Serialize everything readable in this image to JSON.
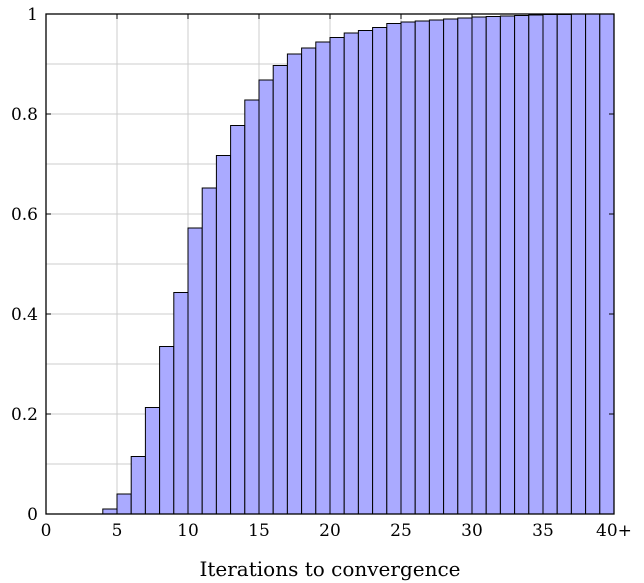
{
  "chart_data": {
    "type": "bar",
    "title": "",
    "xlabel": "Iterations to convergence",
    "ylabel": "",
    "xlim": [
      0,
      40
    ],
    "ylim": [
      0,
      1
    ],
    "grid": true,
    "x_ticks": [
      {
        "value": 0,
        "label": "0"
      },
      {
        "value": 5,
        "label": "5"
      },
      {
        "value": 10,
        "label": "10"
      },
      {
        "value": 15,
        "label": "15"
      },
      {
        "value": 20,
        "label": "20"
      },
      {
        "value": 25,
        "label": "25"
      },
      {
        "value": 30,
        "label": "30"
      },
      {
        "value": 35,
        "label": "35"
      },
      {
        "value": 40,
        "label": "40+"
      }
    ],
    "y_ticks": [
      {
        "value": 0,
        "label": "0"
      },
      {
        "value": 0.2,
        "label": "0.2"
      },
      {
        "value": 0.4,
        "label": "0.4"
      },
      {
        "value": 0.6,
        "label": "0.6"
      },
      {
        "value": 0.8,
        "label": "0.8"
      },
      {
        "value": 1,
        "label": "1"
      }
    ],
    "bar_color": "#aaaaff",
    "bar_edge_color": "#000000",
    "bins": [
      4,
      5,
      6,
      7,
      8,
      9,
      10,
      11,
      12,
      13,
      14,
      15,
      16,
      17,
      18,
      19,
      20,
      21,
      22,
      23,
      24,
      25,
      26,
      27,
      28,
      29,
      30,
      31,
      32,
      33,
      34,
      35,
      36,
      37,
      38,
      39
    ],
    "values": [
      0.01,
      0.04,
      0.115,
      0.213,
      0.335,
      0.443,
      0.572,
      0.652,
      0.717,
      0.777,
      0.828,
      0.868,
      0.897,
      0.92,
      0.932,
      0.944,
      0.953,
      0.962,
      0.967,
      0.973,
      0.981,
      0.984,
      0.986,
      0.988,
      0.99,
      0.992,
      0.994,
      0.995,
      0.996,
      0.997,
      0.998,
      0.999,
      0.999,
      1.0,
      1.0,
      1.0
    ]
  }
}
